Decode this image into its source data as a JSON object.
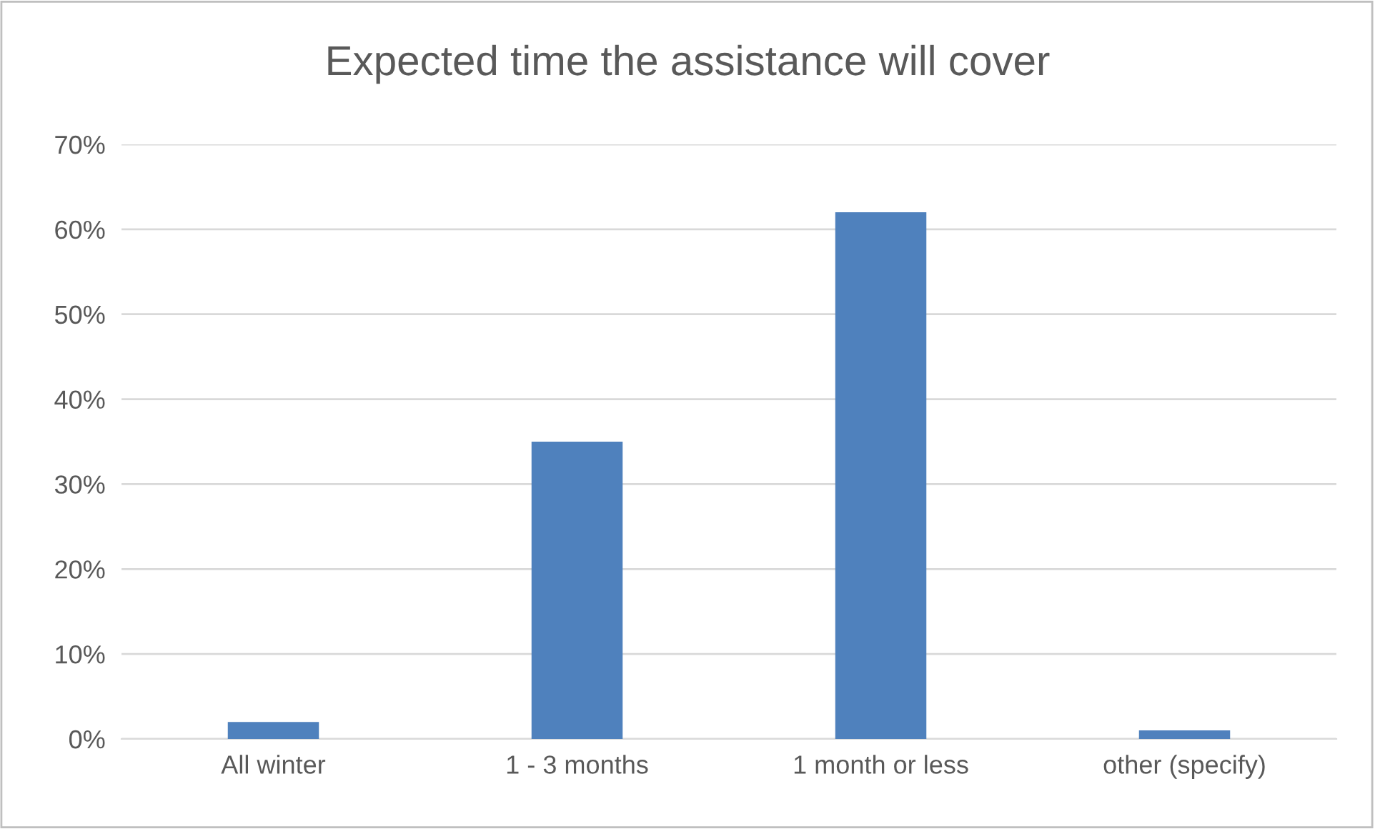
{
  "chart_data": {
    "type": "bar",
    "title": "Expected time the assistance will cover",
    "categories": [
      "All winter",
      "1 - 3 months",
      "1 month or less",
      "other (specify)"
    ],
    "values": [
      2,
      35,
      62,
      1
    ],
    "color": "#4f81bd",
    "ylim": [
      0,
      70
    ],
    "yticks": [
      {
        "value": 0,
        "label": "0%"
      },
      {
        "value": 10,
        "label": "10%"
      },
      {
        "value": 20,
        "label": "20%"
      },
      {
        "value": 30,
        "label": "30%"
      },
      {
        "value": 40,
        "label": "40%"
      },
      {
        "value": 50,
        "label": "50%"
      },
      {
        "value": 60,
        "label": "60%"
      },
      {
        "value": 70,
        "label": "70%"
      }
    ],
    "grid": "y",
    "legend": false
  }
}
